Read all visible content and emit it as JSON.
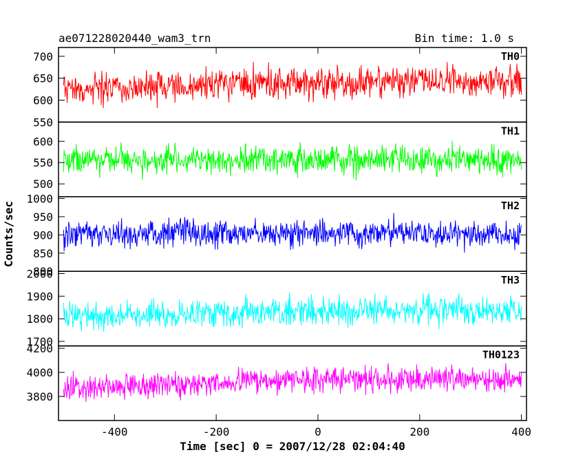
{
  "header": {
    "title": "ae071228020440_wam3_trn",
    "bin_time": "Bin time: 1.0 s"
  },
  "chart_data": {
    "type": "line",
    "title": "ae071228020440_wam3_trn",
    "subtitle": "Bin time: 1.0 s",
    "xlabel": "Time [sec] 0 = 2007/12/28 02:04:40",
    "ylabel": "Counts/sec",
    "xlim": [
      -510,
      410
    ],
    "x_ticks": [
      -400,
      -200,
      0,
      200,
      400
    ],
    "x_range": [
      -500,
      400
    ],
    "bin_seconds": 1.0,
    "grid": false,
    "panels": [
      {
        "name": "TH0",
        "color": "#ff0000",
        "ylim": [
          550,
          720
        ],
        "y_ticks": [
          550,
          600,
          650,
          700
        ],
        "trend": [
          [
            -500,
            622
          ],
          [
            -300,
            628
          ],
          [
            -100,
            637
          ],
          [
            100,
            641
          ],
          [
            300,
            645
          ],
          [
            400,
            647
          ]
        ],
        "amp": 42
      },
      {
        "name": "TH1",
        "color": "#00ff00",
        "ylim": [
          470,
          645
        ],
        "y_ticks": [
          500,
          550,
          600
        ],
        "trend": [
          [
            -500,
            556
          ],
          [
            -250,
            555
          ],
          [
            0,
            557
          ],
          [
            250,
            556
          ],
          [
            400,
            553
          ]
        ],
        "amp": 38
      },
      {
        "name": "TH2",
        "color": "#0000ff",
        "ylim": [
          800,
          1005
        ],
        "y_ticks": [
          800,
          850,
          900,
          950,
          1000
        ],
        "trend": [
          [
            -500,
            902
          ],
          [
            -250,
            905
          ],
          [
            0,
            904
          ],
          [
            250,
            903
          ],
          [
            400,
            900
          ]
        ],
        "amp": 45
      },
      {
        "name": "TH3",
        "color": "#00ffff",
        "ylim": [
          1680,
          2010
        ],
        "y_ticks": [
          1700,
          1800,
          1900,
          2000
        ],
        "trend": [
          [
            -500,
            1805
          ],
          [
            -250,
            1822
          ],
          [
            0,
            1836
          ],
          [
            250,
            1837
          ],
          [
            400,
            1830
          ]
        ],
        "amp": 70
      },
      {
        "name": "TH0123",
        "color": "#ff00ff",
        "ylim": [
          3600,
          4220
        ],
        "y_ticks": [
          3800,
          4000,
          4200
        ],
        "trend": [
          [
            -500,
            3860
          ],
          [
            -250,
            3905
          ],
          [
            0,
            3945
          ],
          [
            250,
            3950
          ],
          [
            400,
            3935
          ]
        ],
        "amp": 125
      }
    ]
  }
}
